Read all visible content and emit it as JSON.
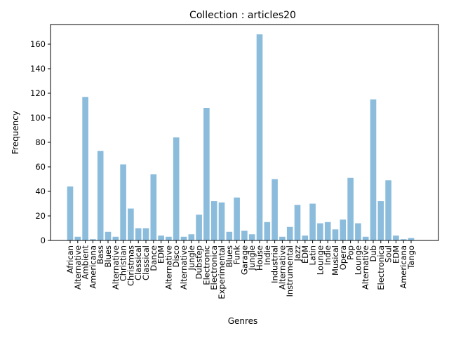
{
  "chart_data": {
    "type": "bar",
    "title": "Collection : articles20",
    "xlabel": "Genres",
    "ylabel": "Frequency",
    "ylim": [
      0,
      176
    ],
    "yticks": [
      0,
      20,
      40,
      60,
      80,
      100,
      120,
      140,
      160
    ],
    "grid": false,
    "bar_color": "#8bbcdc",
    "categories": [
      "African",
      "Alternative",
      "Ambient",
      "Americana",
      "Bass",
      "Blues",
      "Alternative",
      "Christian",
      "Christmas",
      "Classical",
      "Classical",
      "Dance",
      "EDM",
      "Alternative",
      "Disco",
      "Alternative",
      "Jungle",
      "Dubstep",
      "Electronic",
      "Electronica",
      "Experimental",
      "Blues",
      "Funk",
      "Garage",
      "Jungle",
      "House",
      "Indie",
      "Industrial",
      "Alternative",
      "Instrumental",
      "Jazz",
      "EDM",
      "Latin",
      "Lounge",
      "Indie",
      "Musical",
      "Opera",
      "Pop",
      "Lounge",
      "Alternative",
      "Dub",
      "Electronica",
      "Soul",
      "EDM",
      "Americana",
      "Tango"
    ],
    "values": [
      44,
      3,
      117,
      1,
      73,
      7,
      3,
      62,
      26,
      10,
      10,
      54,
      4,
      3,
      84,
      3,
      5,
      21,
      108,
      32,
      31,
      7,
      35,
      8,
      5,
      168,
      15,
      50,
      3,
      11,
      29,
      4,
      30,
      14,
      15,
      9,
      17,
      51,
      14,
      3,
      115,
      32,
      49,
      4,
      1,
      2
    ]
  }
}
